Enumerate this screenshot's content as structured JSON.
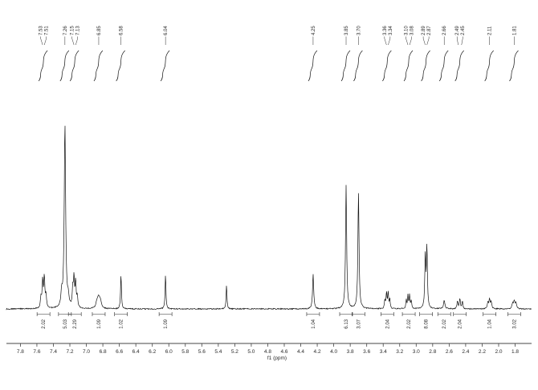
{
  "page": {
    "background": "#ffffff"
  },
  "style": {
    "line_color": "#141414",
    "text_color": "#2a2a2a",
    "axis_color": "#444444"
  },
  "chart_data": {
    "type": "line",
    "kind": "1H NMR spectrum",
    "xlabel": "f1 (ppm)",
    "x_axis": {
      "min_ppm": 1.62,
      "max_ppm": 7.95,
      "reversed": true,
      "tick_labels": [
        "7.8",
        "7.6",
        "7.4",
        "7.2",
        "7.0",
        "6.8",
        "6.6",
        "6.4",
        "6.2",
        "6.0",
        "5.8",
        "5.6",
        "5.4",
        "5.2",
        "5.0",
        "4.8",
        "4.6",
        "4.4",
        "4.2",
        "4.0",
        "3.8",
        "3.6",
        "3.4",
        "3.2",
        "3.0",
        "2.8",
        "2.6",
        "2.4",
        "2.2",
        "2.0",
        "1.8"
      ]
    },
    "peak_label_groups": [
      [
        "7.53",
        "7.51"
      ],
      [
        "7.26"
      ],
      [
        "7.15",
        "7.13"
      ],
      [
        "6.85"
      ],
      [
        "6.58"
      ],
      [
        "6.04"
      ],
      [
        "4.25"
      ],
      [
        "3.85"
      ],
      [
        "3.70"
      ],
      [
        "3.36",
        "3.34"
      ],
      [
        "3.10",
        "3.08"
      ],
      [
        "2.89",
        "2.87"
      ],
      [
        "2.66"
      ],
      [
        "2.49",
        "2.45"
      ],
      [
        "2.11"
      ],
      [
        "1.81"
      ]
    ],
    "peaks": [
      {
        "ppm": 7.55,
        "height": 0.06,
        "hwhm": 0.008
      },
      {
        "ppm": 7.53,
        "height": 0.15,
        "hwhm": 0.007
      },
      {
        "ppm": 7.51,
        "height": 0.17,
        "hwhm": 0.007
      },
      {
        "ppm": 7.49,
        "height": 0.07,
        "hwhm": 0.008
      },
      {
        "ppm": 7.3,
        "height": 0.07,
        "hwhm": 0.01
      },
      {
        "ppm": 7.26,
        "height": 1.0,
        "hwhm": 0.01
      },
      {
        "ppm": 7.22,
        "height": 0.05,
        "hwhm": 0.01
      },
      {
        "ppm": 7.165,
        "height": 0.1,
        "hwhm": 0.007
      },
      {
        "ppm": 7.15,
        "height": 0.16,
        "hwhm": 0.007
      },
      {
        "ppm": 7.13,
        "height": 0.14,
        "hwhm": 0.007
      },
      {
        "ppm": 7.11,
        "height": 0.06,
        "hwhm": 0.007
      },
      {
        "ppm": 6.87,
        "height": 0.035,
        "hwhm": 0.015
      },
      {
        "ppm": 6.85,
        "height": 0.05,
        "hwhm": 0.015
      },
      {
        "ppm": 6.83,
        "height": 0.035,
        "hwhm": 0.015
      },
      {
        "ppm": 6.58,
        "height": 0.19,
        "hwhm": 0.006
      },
      {
        "ppm": 6.04,
        "height": 0.19,
        "hwhm": 0.006
      },
      {
        "ppm": 5.3,
        "height": 0.13,
        "hwhm": 0.006
      },
      {
        "ppm": 4.25,
        "height": 0.19,
        "hwhm": 0.008
      },
      {
        "ppm": 3.85,
        "height": 0.67,
        "hwhm": 0.008
      },
      {
        "ppm": 3.7,
        "height": 0.63,
        "hwhm": 0.008
      },
      {
        "ppm": 3.38,
        "height": 0.05,
        "hwhm": 0.006
      },
      {
        "ppm": 3.36,
        "height": 0.09,
        "hwhm": 0.006
      },
      {
        "ppm": 3.34,
        "height": 0.09,
        "hwhm": 0.006
      },
      {
        "ppm": 3.32,
        "height": 0.05,
        "hwhm": 0.006
      },
      {
        "ppm": 3.12,
        "height": 0.045,
        "hwhm": 0.006
      },
      {
        "ppm": 3.1,
        "height": 0.07,
        "hwhm": 0.006
      },
      {
        "ppm": 3.08,
        "height": 0.07,
        "hwhm": 0.006
      },
      {
        "ppm": 3.06,
        "height": 0.045,
        "hwhm": 0.006
      },
      {
        "ppm": 2.89,
        "height": 0.28,
        "hwhm": 0.007
      },
      {
        "ppm": 2.87,
        "height": 0.33,
        "hwhm": 0.007
      },
      {
        "ppm": 2.66,
        "height": 0.045,
        "hwhm": 0.01
      },
      {
        "ppm": 2.5,
        "height": 0.04,
        "hwhm": 0.007
      },
      {
        "ppm": 2.47,
        "height": 0.055,
        "hwhm": 0.007
      },
      {
        "ppm": 2.44,
        "height": 0.04,
        "hwhm": 0.007
      },
      {
        "ppm": 2.13,
        "height": 0.035,
        "hwhm": 0.008
      },
      {
        "ppm": 2.11,
        "height": 0.05,
        "hwhm": 0.008
      },
      {
        "ppm": 2.09,
        "height": 0.035,
        "hwhm": 0.008
      },
      {
        "ppm": 1.83,
        "height": 0.03,
        "hwhm": 0.009
      },
      {
        "ppm": 1.81,
        "height": 0.04,
        "hwhm": 0.009
      },
      {
        "ppm": 1.79,
        "height": 0.03,
        "hwhm": 0.009
      }
    ],
    "integral_curves_ppm": [
      7.52,
      7.26,
      7.14,
      6.85,
      6.58,
      6.04,
      4.25,
      3.85,
      3.7,
      3.35,
      3.09,
      2.88,
      2.66,
      2.47,
      2.11,
      1.81
    ],
    "integrals": [
      {
        "ppm": 7.52,
        "value": "2.02"
      },
      {
        "ppm": 7.26,
        "value": "5.03"
      },
      {
        "ppm": 7.14,
        "value": "2.29"
      },
      {
        "ppm": 6.85,
        "value": "1.09"
      },
      {
        "ppm": 6.58,
        "value": "1.02"
      },
      {
        "ppm": 6.04,
        "value": "1.09"
      },
      {
        "ppm": 4.25,
        "value": "1.04"
      },
      {
        "ppm": 3.85,
        "value": "6.13"
      },
      {
        "ppm": 3.7,
        "value": "3.07"
      },
      {
        "ppm": 3.35,
        "value": "2.04"
      },
      {
        "ppm": 3.09,
        "value": "2.02"
      },
      {
        "ppm": 2.88,
        "value": "8.08"
      },
      {
        "ppm": 2.66,
        "value": "2.02"
      },
      {
        "ppm": 2.47,
        "value": "2.04"
      },
      {
        "ppm": 2.11,
        "value": "1.04"
      },
      {
        "ppm": 1.81,
        "value": "3.02"
      }
    ]
  }
}
